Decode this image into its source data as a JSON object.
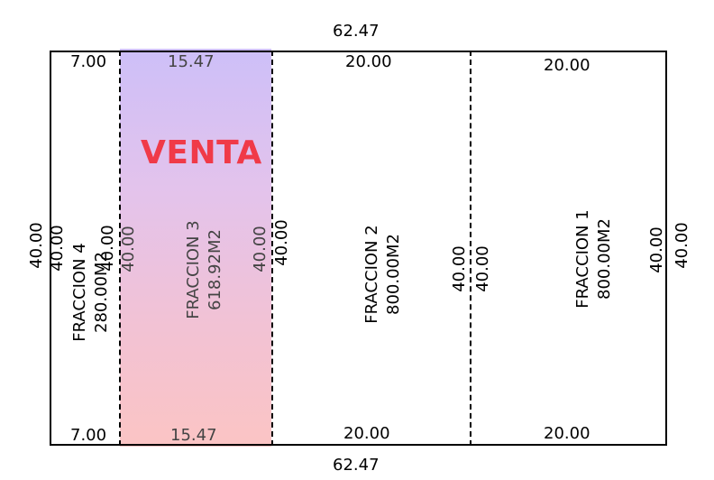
{
  "plan": {
    "total_width_top": "62.47",
    "total_width_bottom": "62.47",
    "outer_left_depth": "40.00",
    "outer_right_depth": "40.00",
    "sale_label": "VENTA",
    "colors": {
      "sale_label": "#f03a48",
      "sale_gradient_top": "#cdbff8",
      "sale_gradient_bottom": "#fbc4c4",
      "lines": "#000000"
    },
    "lots": [
      {
        "name": "FRACCION 4",
        "area": "280.00M2",
        "front_top": "7.00",
        "front_bottom": "7.00",
        "depth_left": "40.00",
        "depth_right": "40.00",
        "for_sale": false
      },
      {
        "name": "FRACCION 3",
        "area": "618.92M2",
        "front_top": "15.47",
        "front_bottom": "15.47",
        "depth_left": "40.00",
        "depth_right": "40.00",
        "for_sale": true
      },
      {
        "name": "FRACCION 2",
        "area": "800.00M2",
        "front_top": "20.00",
        "front_bottom": "20.00",
        "depth_left": "40.00",
        "depth_right": "40.00",
        "for_sale": false
      },
      {
        "name": "FRACCION 1",
        "area": "800.00M2",
        "front_top": "20.00",
        "front_bottom": "20.00",
        "depth_left": "40.00",
        "depth_right": "40.00",
        "for_sale": false
      }
    ]
  }
}
